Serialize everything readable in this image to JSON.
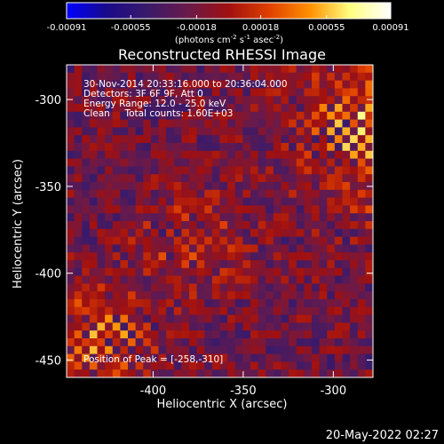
{
  "chart_data": {
    "type": "heatmap",
    "title": "Reconstructed RHESSI Image",
    "xlabel": "Heliocentric X (arcsec)",
    "ylabel": "Heliocentric Y (arcsec)",
    "xlim": [
      -448,
      -278
    ],
    "ylim": [
      -460,
      -280
    ],
    "x_ticks": [
      "-400",
      "-350",
      "-300"
    ],
    "x_tick_values": [
      -400,
      -350,
      -300
    ],
    "y_ticks": [
      "-450",
      "-400",
      "-350",
      "-300"
    ],
    "y_tick_values": [
      -450,
      -400,
      -350,
      -300
    ],
    "colorbar": {
      "range": [
        -0.00091,
        0.00091
      ],
      "ticks": [
        "-0.00091",
        "-0.00055",
        "-0.00018",
        "0.00018",
        "0.00055",
        "0.00091"
      ],
      "tick_values": [
        -0.00091,
        -0.00055,
        -0.00018,
        0.00018,
        0.00055,
        0.00091
      ],
      "unit_main": "(photons cm",
      "unit_exp1": "-2",
      "unit_mid": " s",
      "unit_exp2": "-1",
      "unit_tail": " asec",
      "unit_exp3": "-2",
      "unit_close": ")"
    },
    "peak": {
      "x": -258,
      "y": -310
    },
    "annotations": {
      "time_range": "30-Nov-2014 20:33:16.000 to 20:36:04.000",
      "detectors": "Detectors: 3F 6F 9F, Att 0",
      "energy": "Energy Range: 12.0 - 25.0 keV",
      "clean": "Clean     Total counts: 1.60E+03",
      "peak_label": "Position of Peak = [-258,-310]"
    },
    "colormap": [
      "#0000ff",
      "#1a0a8a",
      "#3a1a6a",
      "#6a1a4a",
      "#a01010",
      "#e04000",
      "#ff9000",
      "#ffff80",
      "#ffffff"
    ]
  },
  "footer": {
    "timestamp": "20-May-2022 02:27"
  }
}
